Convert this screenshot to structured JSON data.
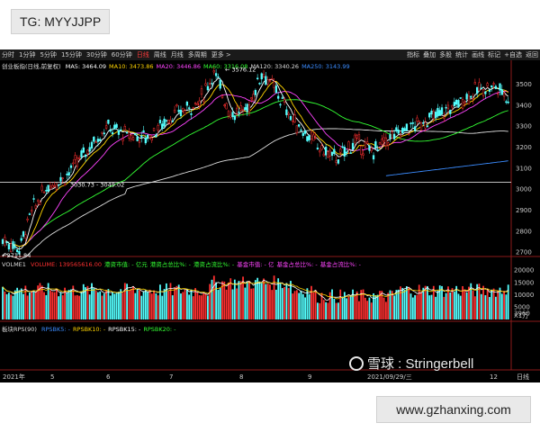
{
  "watermark_top": "TG: MYYJJPP",
  "watermark_site": "www.gzhanxing.com",
  "watermark_brand": "雪球 : Stringerbell",
  "toolbar": {
    "tabs": [
      "分时",
      "1分钟",
      "5分钟",
      "15分钟",
      "30分钟",
      "60分钟",
      "日线",
      "周线",
      "月线",
      "多周期",
      "更多 >"
    ],
    "active_tab": "日线",
    "tools": [
      "指标",
      "叠加",
      "多股",
      "统计",
      "画线",
      "标记",
      "+自选",
      "返回"
    ]
  },
  "main_panel": {
    "symbol": "创业板指(日线,前复权)",
    "ma": [
      {
        "label": "MA5: 3464.09",
        "color": "#ffffff"
      },
      {
        "label": "MA10: 3473.86",
        "color": "#ffd400"
      },
      {
        "label": "MA20: 3446.86",
        "color": "#ff44ff"
      },
      {
        "label": "MA60: 3316.08",
        "color": "#33ff33"
      },
      {
        "label": "MA120: 3340.26",
        "color": "#dddddd"
      },
      {
        "label": "MA250: 3143.99",
        "color": "#3b8cff"
      }
    ],
    "y_ticks": [
      "3500",
      "3400",
      "3300",
      "3200",
      "3100",
      "3000",
      "2900",
      "2800",
      "2700"
    ],
    "annotations": {
      "high": "3576.12",
      "low": "2711.84",
      "mid": "3030.73 - 3049.02"
    }
  },
  "volume_panel": {
    "label": "VOLME1",
    "items": [
      {
        "label": "VOLUME: 139565616.00",
        "color": "#ff3030"
      },
      {
        "label": "港资市值: - 亿元",
        "color": "#33ff33"
      },
      {
        "label": "港资占总比%: -",
        "color": "#33ff33"
      },
      {
        "label": "港资占流比%: -",
        "color": "#33ff33"
      },
      {
        "label": "基金市值: - 亿",
        "color": "#ff44ff"
      },
      {
        "label": "基金占总比%: -",
        "color": "#ff44ff"
      },
      {
        "label": "基金占流比%: -",
        "color": "#ff44ff"
      }
    ],
    "y_ticks": [
      "20000",
      "15000",
      "10000",
      "5000"
    ],
    "current": "3960",
    "unit": "X1万"
  },
  "rps_panel": {
    "label": "板块RPS(90)",
    "items": [
      {
        "label": "RPSBK5: -",
        "color": "#3b8cff"
      },
      {
        "label": "RPSBK10: -",
        "color": "#ffd400"
      },
      {
        "label": "RPSBK15: -",
        "color": "#ffffff"
      },
      {
        "label": "RPSBK20: -",
        "color": "#33ff33"
      }
    ]
  },
  "x_axis": {
    "labels": [
      "2021年",
      "5",
      "6",
      "7",
      "8",
      "9",
      "2021/09/29/三",
      "12"
    ],
    "right_label": "日线"
  }
}
